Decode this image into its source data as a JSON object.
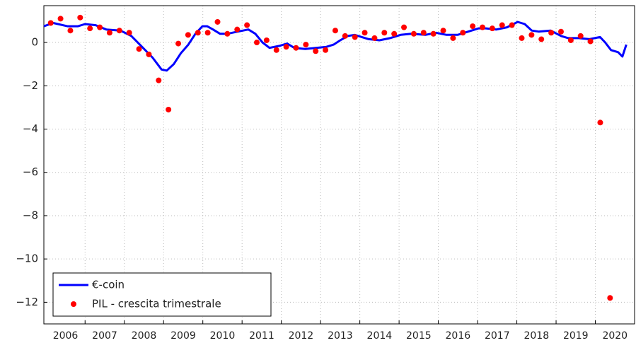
{
  "chart_data": {
    "type": "line",
    "xlim": [
      2005.95,
      2021
    ],
    "ylim": [
      -13,
      1.7
    ],
    "yticks": [
      {
        "value": -12,
        "label": "−12"
      },
      {
        "value": -10,
        "label": "−10"
      },
      {
        "value": -8,
        "label": "−8"
      },
      {
        "value": -6,
        "label": "−6"
      },
      {
        "value": -4,
        "label": "−4"
      },
      {
        "value": -2,
        "label": "−2"
      },
      0
    ],
    "xticks": [
      {
        "value": 2006.5,
        "label": "2006"
      },
      {
        "value": 2007.5,
        "label": "2007"
      },
      {
        "value": 2008.5,
        "label": "2008"
      },
      {
        "value": 2009.5,
        "label": "2009"
      },
      {
        "value": 2010.5,
        "label": "2010"
      },
      {
        "value": 2011.5,
        "label": "2011"
      },
      {
        "value": 2012.5,
        "label": "2012"
      },
      {
        "value": 2013.5,
        "label": "2013"
      },
      {
        "value": 2014.5,
        "label": "2014"
      },
      {
        "value": 2015.5,
        "label": "2015"
      },
      {
        "value": 2016.5,
        "label": "2016"
      },
      {
        "value": 2017.5,
        "label": "2017"
      },
      {
        "value": 2018.5,
        "label": "2018"
      },
      {
        "value": 2019.5,
        "label": "2019"
      },
      {
        "value": 2020.5,
        "label": "2020"
      }
    ],
    "xgrid": [
      2007,
      2008,
      2009,
      2010,
      2011,
      2012,
      2013,
      2014,
      2015,
      2016,
      2017,
      2018,
      2019,
      2020
    ],
    "grid": true,
    "legend": "lower left",
    "series": [
      {
        "name": "€-coin",
        "type": "line",
        "color": "#0000ff",
        "x": [
          2005.95,
          2006.19,
          2006.55,
          2006.82,
          2007.0,
          2007.27,
          2007.54,
          2007.9,
          2008.18,
          2008.45,
          2008.72,
          2008.95,
          2009.08,
          2009.26,
          2009.44,
          2009.63,
          2009.81,
          2009.99,
          2010.11,
          2010.26,
          2010.44,
          2010.62,
          2010.89,
          2011.16,
          2011.34,
          2011.52,
          2011.7,
          2011.97,
          2012.15,
          2012.33,
          2012.61,
          2012.88,
          2013.15,
          2013.33,
          2013.5,
          2013.69,
          2013.87,
          2014.05,
          2014.23,
          2014.5,
          2014.77,
          2015.04,
          2015.31,
          2015.67,
          2015.94,
          2016.21,
          2016.49,
          2016.76,
          2017.03,
          2017.21,
          2017.48,
          2017.75,
          2018.02,
          2018.2,
          2018.38,
          2018.56,
          2018.86,
          2019.13,
          2019.31,
          2019.58,
          2019.85,
          2020.12,
          2020.25,
          2020.4,
          2020.58,
          2020.69,
          2020.79
        ],
        "values": [
          0.75,
          0.9,
          0.75,
          0.75,
          0.85,
          0.8,
          0.6,
          0.55,
          0.3,
          -0.2,
          -0.7,
          -1.25,
          -1.3,
          -1.0,
          -0.5,
          -0.1,
          0.4,
          0.75,
          0.75,
          0.6,
          0.4,
          0.4,
          0.5,
          0.6,
          0.4,
          0.0,
          -0.25,
          -0.15,
          -0.05,
          -0.25,
          -0.3,
          -0.25,
          -0.2,
          -0.1,
          0.1,
          0.3,
          0.35,
          0.25,
          0.15,
          0.1,
          0.2,
          0.35,
          0.4,
          0.35,
          0.45,
          0.35,
          0.35,
          0.5,
          0.65,
          0.65,
          0.6,
          0.7,
          0.95,
          0.85,
          0.55,
          0.5,
          0.55,
          0.3,
          0.2,
          0.2,
          0.15,
          0.25,
          0.0,
          -0.35,
          -0.45,
          -0.65,
          -0.1
        ]
      },
      {
        "name": "PIL - crescita trimestrale",
        "type": "scatter",
        "color": "#ff0000",
        "x": [
          2006.125,
          2006.375,
          2006.625,
          2006.875,
          2007.125,
          2007.375,
          2007.625,
          2007.875,
          2008.125,
          2008.375,
          2008.625,
          2008.875,
          2009.125,
          2009.375,
          2009.625,
          2009.875,
          2010.125,
          2010.375,
          2010.625,
          2010.875,
          2011.125,
          2011.375,
          2011.625,
          2011.875,
          2012.125,
          2012.375,
          2012.625,
          2012.875,
          2013.125,
          2013.375,
          2013.625,
          2013.875,
          2014.125,
          2014.375,
          2014.625,
          2014.875,
          2015.125,
          2015.375,
          2015.625,
          2015.875,
          2016.125,
          2016.375,
          2016.625,
          2016.875,
          2017.125,
          2017.375,
          2017.625,
          2017.875,
          2018.125,
          2018.375,
          2018.625,
          2018.875,
          2019.125,
          2019.375,
          2019.625,
          2019.875,
          2020.125,
          2020.375
        ],
        "values": [
          0.9,
          1.1,
          0.55,
          1.15,
          0.65,
          0.7,
          0.45,
          0.55,
          0.45,
          -0.3,
          -0.55,
          -1.75,
          -3.1,
          -0.05,
          0.35,
          0.45,
          0.45,
          0.95,
          0.4,
          0.6,
          0.8,
          0.0,
          0.1,
          -0.35,
          -0.2,
          -0.25,
          -0.1,
          -0.4,
          -0.35,
          0.55,
          0.3,
          0.25,
          0.45,
          0.2,
          0.45,
          0.4,
          0.7,
          0.4,
          0.45,
          0.4,
          0.55,
          0.2,
          0.45,
          0.75,
          0.7,
          0.65,
          0.8,
          0.8,
          0.2,
          0.35,
          0.15,
          0.45,
          0.5,
          0.1,
          0.3,
          0.05,
          -3.7,
          -11.8
        ]
      }
    ]
  }
}
